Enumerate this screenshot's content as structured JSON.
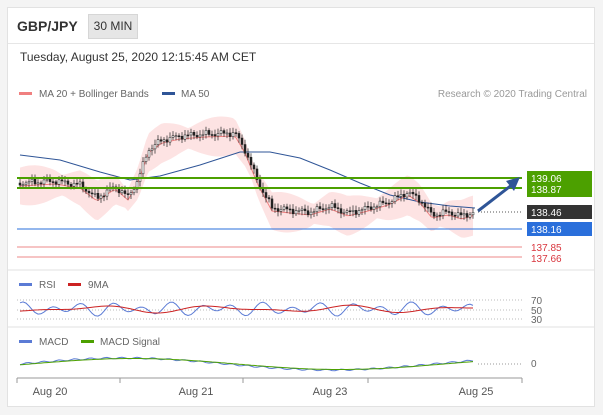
{
  "header": {
    "pair": "GBP/JPY",
    "timeframe": "30 MIN",
    "timestamp": "Tuesday, August 25, 2020 12:15:45 AM CET"
  },
  "legend": {
    "ma20_label": "MA 20 + Bollinger Bands",
    "ma50_label": "MA 50",
    "credit": "Research © 2020 Trading Central"
  },
  "levels": {
    "res2": "139.06",
    "res1": "138.87",
    "last": "138.46",
    "piv": "138.16",
    "sup1": "137.85",
    "sup2": "137.66"
  },
  "rsi": {
    "label": "RSI",
    "ma_label": "9MA",
    "ticks": [
      "70",
      "50",
      "30"
    ]
  },
  "macd": {
    "label": "MACD",
    "signal_label": "MACD Signal",
    "tick": "0"
  },
  "xaxis": [
    "Aug 20",
    "Aug 21",
    "Aug 23",
    "Aug 25"
  ],
  "colors": {
    "resistance": "#4ca000",
    "last": "#333333",
    "pivot": "#2a6fdb",
    "support": "#d9363e",
    "ma20": "#f08080",
    "ma50": "#2f5597",
    "band_fill": "#fde3e3",
    "rsi": "#5b7bd5",
    "rsi_ma": "#cc2222",
    "macd": "#5b7bd5",
    "macd_signal": "#4ca000"
  }
}
